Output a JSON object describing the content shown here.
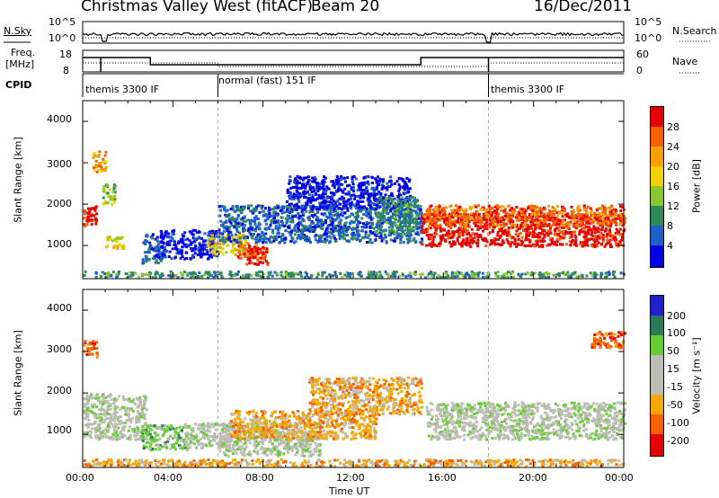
{
  "header": {
    "title": "Christmas Valley West (fitACF)",
    "beam": "Beam 20",
    "date": "16/Dec/2011"
  },
  "top_panels": {
    "nsky_label": "N.Sky",
    "nsky_ticks": [
      "10^5",
      "10^0"
    ],
    "nsearch_label": "N.Search",
    "freq_label_1": "Freq.",
    "freq_label_2": "[MHz]",
    "freq_ticks": [
      "18",
      "8"
    ],
    "nave_label": "Nave",
    "nave_ticks": [
      "60",
      "0"
    ],
    "cpid_label": "CPID",
    "cpid_segments": [
      {
        "name": "themis 3300 IF",
        "start_hour": 0.0
      },
      {
        "name": "normal (fast) 151 IF",
        "start_hour": 6.0
      },
      {
        "name": "themis 3300 IF",
        "start_hour": 18.0
      }
    ]
  },
  "colors": {
    "power": [
      "#0000e8",
      "#1f5fc8",
      "#2e8a5a",
      "#8ac832",
      "#f2d000",
      "#f5a000",
      "#f56000",
      "#e80000"
    ],
    "velocity": [
      "#2020d0",
      "#2a7a5a",
      "#66cc33",
      "#bcbcb4",
      "#bcbcb4",
      "#f5a800",
      "#f56000",
      "#e80000"
    ]
  },
  "chart_data": [
    {
      "type": "heatmap",
      "name": "power",
      "xlabel": "Time UT",
      "ylabel": "Slant Range [km]",
      "xlim": [
        0,
        24
      ],
      "ylim": [
        200,
        4500
      ],
      "x_ticks": [
        "00:00",
        "04:00",
        "08:00",
        "12:00",
        "16:00",
        "20:00",
        "00:00"
      ],
      "y_ticks": [
        "1000",
        "2000",
        "3000",
        "4000"
      ],
      "colorbar_label": "Power [dB]",
      "colorbar_ticks": [
        "28",
        "24",
        "20",
        "16",
        "12",
        "8",
        "4"
      ],
      "regions": [
        {
          "t0": 0.0,
          "t1": 0.6,
          "r0": 1500,
          "r1": 2000,
          "level": 7
        },
        {
          "t0": 0.4,
          "t1": 1.0,
          "r0": 2800,
          "r1": 3300,
          "level": 5
        },
        {
          "t0": 0.8,
          "t1": 1.4,
          "r0": 2000,
          "r1": 2500,
          "level": 3
        },
        {
          "t0": 1.0,
          "t1": 1.8,
          "r0": 950,
          "r1": 1250,
          "level": 4
        },
        {
          "t0": 2.6,
          "t1": 3.6,
          "r0": 600,
          "r1": 1300,
          "level": 1
        },
        {
          "t0": 3.4,
          "t1": 6.0,
          "r0": 700,
          "r1": 1400,
          "level": 0
        },
        {
          "t0": 5.5,
          "t1": 7.2,
          "r0": 800,
          "r1": 1300,
          "level": 4
        },
        {
          "t0": 6.8,
          "t1": 7.8,
          "r0": 700,
          "r1": 1100,
          "level": 6
        },
        {
          "t0": 7.2,
          "t1": 8.2,
          "r0": 550,
          "r1": 1000,
          "level": 7
        },
        {
          "t0": 6.0,
          "t1": 15.0,
          "r0": 1100,
          "r1": 2000,
          "level": 1
        },
        {
          "t0": 9.0,
          "t1": 14.5,
          "r0": 1900,
          "r1": 2700,
          "level": 0
        },
        {
          "t0": 13.0,
          "t1": 14.8,
          "r0": 1300,
          "r1": 2200,
          "level": 2
        },
        {
          "t0": 15.0,
          "t1": 24.0,
          "r0": 1000,
          "r1": 1800,
          "level": 7
        },
        {
          "t0": 15.2,
          "t1": 24.0,
          "r0": 1500,
          "r1": 2000,
          "level": 6
        },
        {
          "t0": 0.0,
          "t1": 24.0,
          "r0": 250,
          "r1": 400,
          "level": 2
        }
      ]
    },
    {
      "type": "heatmap",
      "name": "velocity",
      "xlabel": "Time UT",
      "ylabel": "Slant Range [km]",
      "xlim": [
        0,
        24
      ],
      "ylim": [
        200,
        4500
      ],
      "x_ticks": [
        "00:00",
        "04:00",
        "08:00",
        "12:00",
        "16:00",
        "20:00",
        "00:00"
      ],
      "y_ticks": [
        "1000",
        "2000",
        "3000",
        "4000"
      ],
      "colorbar_label": "Velocity [m s⁻¹]",
      "colorbar_ticks": [
        "200",
        "100",
        "50",
        "15",
        "-15",
        "-50",
        "-100",
        "-200"
      ],
      "regions": [
        {
          "t0": 0.0,
          "t1": 2.8,
          "r0": 900,
          "r1": 2000,
          "level": 3
        },
        {
          "t0": 0.0,
          "t1": 0.6,
          "r0": 2900,
          "r1": 3300,
          "level": 6
        },
        {
          "t0": 2.6,
          "t1": 4.6,
          "r0": 650,
          "r1": 1250,
          "level": 2
        },
        {
          "t0": 4.5,
          "t1": 6.5,
          "r0": 700,
          "r1": 1300,
          "level": 3
        },
        {
          "t0": 6.0,
          "t1": 10.5,
          "r0": 500,
          "r1": 1300,
          "level": 3
        },
        {
          "t0": 6.5,
          "t1": 13.0,
          "r0": 900,
          "r1": 1600,
          "level": 5
        },
        {
          "t0": 10.0,
          "t1": 15.0,
          "r0": 1500,
          "r1": 2400,
          "level": 5
        },
        {
          "t0": 15.2,
          "t1": 24.0,
          "r0": 900,
          "r1": 1800,
          "level": 3
        },
        {
          "t0": 0.0,
          "t1": 24.0,
          "r0": 250,
          "r1": 420,
          "level": 5
        },
        {
          "t0": 22.5,
          "t1": 24.0,
          "r0": 3100,
          "r1": 3500,
          "level": 6
        }
      ]
    }
  ]
}
